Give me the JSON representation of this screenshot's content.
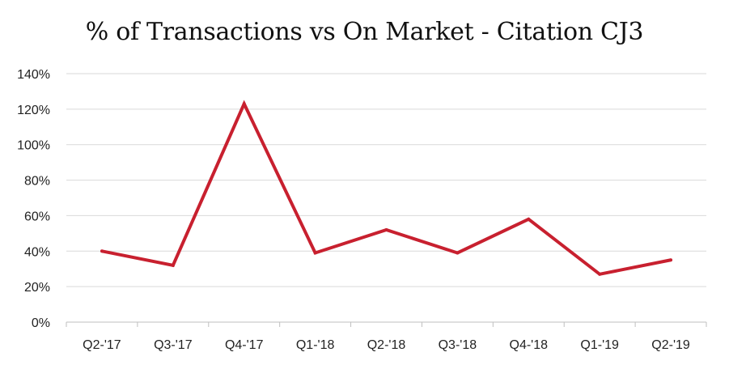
{
  "chart_data": {
    "type": "line",
    "title": "% of Transactions vs On Market - Citation CJ3",
    "xlabel": "",
    "ylabel": "",
    "categories": [
      "Q2-'17",
      "Q3-'17",
      "Q4-'17",
      "Q1-'18",
      "Q2-'18",
      "Q3-'18",
      "Q4-'18",
      "Q1-'19",
      "Q2-'19"
    ],
    "series": [
      {
        "values": [
          40,
          32,
          123,
          39,
          52,
          39,
          58,
          27,
          35
        ]
      }
    ],
    "ylim": [
      0,
      140
    ],
    "yticks": [
      "0%",
      "20%",
      "40%",
      "60%",
      "80%",
      "100%",
      "120%",
      "140%"
    ],
    "grid": true,
    "legend": "none",
    "line_color": "#c8202f"
  }
}
